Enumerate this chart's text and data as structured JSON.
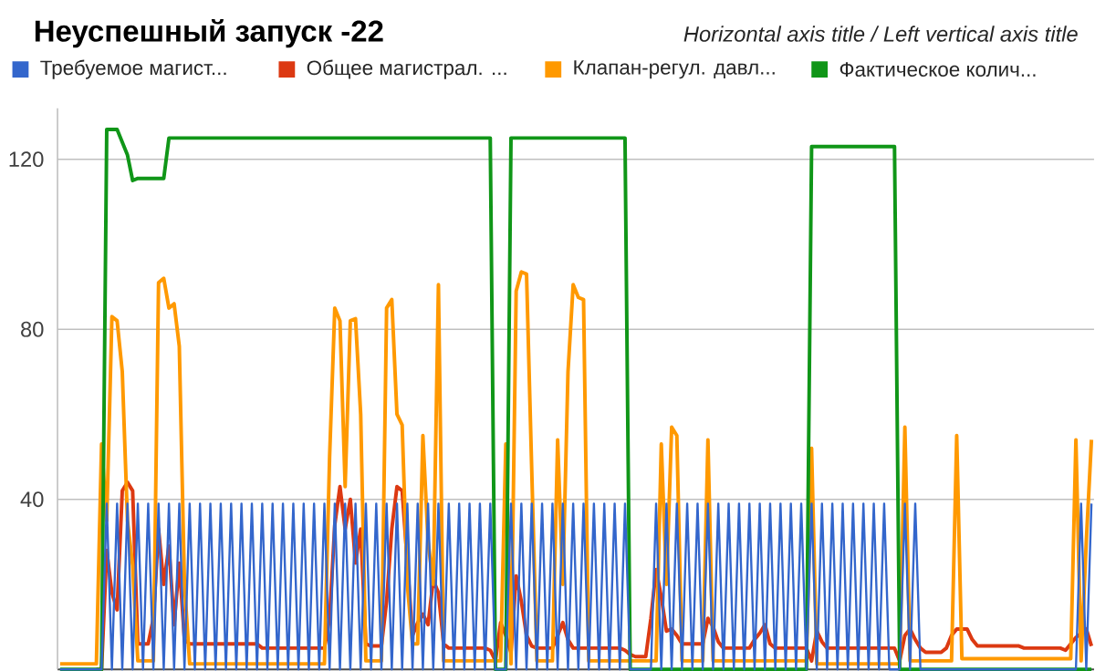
{
  "chart_data": {
    "type": "line",
    "title": "Неуспешный запуск -22",
    "subtitle": "Horizontal axis title / Left vertical axis title",
    "categories": [
      null,
      null,
      null,
      null,
      null,
      null,
      null,
      null,
      null,
      null,
      null,
      null,
      null,
      null,
      null,
      null,
      null,
      null,
      null,
      null,
      null,
      null,
      null,
      null,
      null,
      null,
      null,
      null,
      null,
      null,
      null,
      null,
      null,
      null,
      null,
      null,
      null,
      null,
      null,
      null,
      null,
      null,
      null,
      null,
      null,
      null,
      null,
      null,
      null,
      null,
      null,
      null,
      null,
      null,
      null,
      null,
      null,
      null,
      null,
      null,
      null,
      null,
      null,
      null,
      null,
      null,
      null,
      null,
      null,
      null,
      null,
      null,
      null,
      null,
      null,
      null,
      null,
      null,
      null,
      null,
      null,
      null,
      null,
      null,
      null,
      null,
      null,
      null,
      null,
      null,
      null,
      null,
      null,
      null,
      null,
      null,
      null,
      null,
      null,
      null,
      null,
      null,
      null,
      null,
      null,
      null,
      null,
      null,
      null,
      null,
      null,
      null,
      null,
      null,
      null,
      null,
      null,
      null,
      null,
      null,
      null,
      null,
      null,
      null,
      null,
      null,
      null,
      null,
      null,
      null,
      null,
      null,
      null,
      null,
      null,
      null,
      null,
      null,
      null,
      null,
      null,
      null,
      null,
      null,
      null,
      null,
      null,
      null,
      null,
      null,
      null,
      null,
      null,
      null,
      null,
      null,
      null,
      null,
      null,
      null,
      null,
      null,
      null,
      null,
      null,
      null,
      null,
      null,
      null,
      null,
      null,
      null,
      null,
      null,
      null,
      null,
      null,
      null,
      null,
      null,
      null,
      null,
      null,
      null,
      null,
      null,
      null,
      null,
      null,
      null,
      null,
      null,
      null,
      null,
      null,
      null,
      null,
      null,
      null,
      null
    ],
    "ylim": [
      0,
      132
    ],
    "yticks": [
      40,
      80,
      120
    ],
    "tick_labels": "y",
    "grid": "y",
    "legend": "top",
    "series": [
      {
        "name": "Требуемое магист...",
        "color": "#3366cc",
        "values": [
          0,
          0,
          0,
          0,
          0,
          0,
          0,
          0,
          0,
          39,
          0,
          39,
          0,
          39,
          0,
          39,
          0,
          39,
          0,
          39,
          0,
          39,
          0,
          39,
          0,
          39,
          0,
          39,
          0,
          39,
          0,
          39,
          0,
          39,
          0,
          39,
          0,
          39,
          0,
          39,
          0,
          39,
          0,
          39,
          0,
          39,
          0,
          39,
          0,
          39,
          0,
          39,
          0,
          39,
          0,
          39,
          0,
          39,
          0,
          39,
          0,
          39,
          0,
          39,
          0,
          39,
          0,
          39,
          0,
          39,
          0,
          39,
          0,
          39,
          0,
          39,
          0,
          39,
          0,
          39,
          0,
          39,
          0,
          39,
          0,
          0,
          0,
          39,
          0,
          39,
          0,
          39,
          0,
          39,
          0,
          39,
          0,
          39,
          0,
          39,
          0,
          39,
          0,
          39,
          0,
          39,
          0,
          39,
          0,
          39,
          0,
          0,
          0,
          0,
          0,
          39,
          0,
          39,
          0,
          39,
          0,
          39,
          0,
          39,
          0,
          39,
          0,
          39,
          0,
          39,
          0,
          39,
          0,
          39,
          0,
          39,
          0,
          39,
          0,
          39,
          0,
          39,
          0,
          39,
          0,
          39,
          0,
          39,
          0,
          39,
          0,
          39,
          0,
          39,
          0,
          39,
          0,
          39,
          0,
          39,
          0,
          0,
          0,
          39,
          0,
          39,
          0,
          0,
          0,
          0,
          0,
          0,
          0,
          0,
          0,
          0,
          0,
          0,
          0,
          0,
          0,
          0,
          0,
          0,
          0,
          0,
          0,
          0,
          0,
          0,
          0,
          0,
          0,
          0,
          0,
          0,
          0,
          39,
          0,
          39
        ]
      },
      {
        "name": "Общее магистрал. ...",
        "color": "#dc3912",
        "values": [
          null,
          null,
          null,
          null,
          null,
          null,
          null,
          0,
          0,
          28,
          18,
          14,
          42,
          44,
          42,
          6,
          6,
          6,
          12,
          33,
          20,
          29,
          10.5,
          25,
          7,
          6,
          6,
          6,
          6,
          6,
          6,
          6,
          6,
          6,
          6,
          6,
          6,
          6,
          6,
          5,
          5,
          5,
          5,
          5,
          5,
          5,
          5,
          5,
          5,
          5,
          5,
          5,
          12,
          34,
          43,
          33,
          40,
          25,
          33,
          6,
          5.5,
          5.5,
          5.5,
          16,
          33,
          43,
          42,
          25,
          8,
          11,
          13,
          10.5,
          21,
          18,
          6,
          5,
          5,
          5,
          5,
          5,
          5,
          5,
          5,
          4.5,
          2,
          11,
          8,
          4,
          22,
          16,
          8,
          5.5,
          5,
          5,
          5,
          5,
          8,
          11,
          7,
          5,
          5,
          5,
          5,
          5,
          5,
          5,
          5,
          5,
          5,
          4.5,
          3.5,
          3,
          3,
          3,
          12,
          23.5,
          17,
          9,
          9.5,
          8,
          6,
          6,
          6,
          6,
          6,
          12,
          10,
          6.5,
          5,
          5,
          5,
          5,
          5,
          5,
          7,
          8.5,
          10.5,
          6,
          5,
          5,
          5,
          5,
          5,
          5,
          5,
          2,
          9,
          6.5,
          5,
          5,
          5,
          5,
          5,
          5,
          5,
          5,
          5,
          5,
          5,
          5,
          5,
          5,
          2,
          8,
          9.5,
          7,
          5,
          4,
          4,
          4,
          4,
          5,
          8,
          9.5,
          9.5,
          9.5,
          7,
          5.5,
          5.5,
          5.5,
          5.5,
          5.5,
          5.5,
          5.5,
          5.5,
          5.5,
          5,
          5,
          5,
          5,
          5,
          5,
          5,
          5,
          4.5,
          6,
          7.5,
          8.5,
          9.5,
          5.5
        ]
      },
      {
        "name": "Клапан-регул. давл...",
        "color": "#ff9900",
        "values": [
          1.3,
          1.3,
          1.3,
          1.3,
          1.3,
          1.3,
          1.3,
          1.3,
          53,
          35,
          83,
          82,
          70,
          35,
          24.5,
          2,
          2,
          2,
          2,
          91,
          92,
          85,
          86,
          76,
          20,
          1.3,
          1.3,
          1.3,
          1.3,
          1.3,
          1.3,
          1.3,
          1.3,
          1.3,
          1.3,
          1.3,
          1.3,
          1.3,
          1.3,
          1.3,
          1.3,
          1.3,
          1.3,
          1.3,
          1.3,
          1.3,
          1.3,
          1.3,
          1.3,
          1.3,
          1.3,
          1.3,
          50,
          85,
          82,
          43,
          82,
          82.5,
          60,
          2,
          2,
          2,
          2,
          85,
          87,
          60,
          57.5,
          20,
          6,
          6,
          55,
          30,
          20,
          90.5,
          2,
          2,
          2,
          2,
          2,
          2,
          2,
          2,
          2,
          2,
          2,
          2,
          53,
          1.3,
          89,
          93.5,
          93,
          47,
          2,
          2,
          2,
          2,
          54,
          20,
          70,
          90.5,
          87.5,
          87,
          2,
          2,
          2,
          2,
          2,
          2,
          2,
          2,
          2,
          2,
          2,
          2,
          2,
          2,
          53,
          20,
          57,
          55,
          2,
          2,
          2,
          2,
          2,
          54,
          2,
          2,
          2,
          2,
          2,
          2,
          2,
          2,
          2,
          2,
          2,
          2,
          2,
          2,
          2,
          2,
          2,
          2,
          2,
          52,
          1.3,
          1.3,
          1.3,
          1.3,
          1.3,
          1.3,
          1.3,
          1.3,
          1.3,
          1.3,
          1.3,
          1.3,
          1.3,
          1.3,
          1.3,
          1.3,
          1.3,
          57,
          2,
          2,
          2,
          2,
          2,
          2,
          2,
          2,
          2,
          55,
          2.5,
          2.5,
          2.5,
          2.5,
          2.5,
          2.5,
          2.5,
          2.5,
          2.5,
          2.5,
          2.5,
          2.5,
          2.5,
          2.5,
          2.5,
          2.5,
          2.5,
          2.5,
          2.5,
          2.5,
          2.5,
          2.5,
          54,
          2,
          30,
          54
        ]
      },
      {
        "name": "Фактическое колич...",
        "color": "#109618",
        "values": [
          0,
          0,
          0,
          0,
          0,
          0,
          0,
          0,
          0,
          127,
          127,
          127,
          124,
          121,
          115,
          115.5,
          115.5,
          115.5,
          115.5,
          115.5,
          115.5,
          125,
          125,
          125,
          125,
          125,
          125,
          125,
          125,
          125,
          125,
          125,
          125,
          125,
          125,
          125,
          125,
          125,
          125,
          125,
          125,
          125,
          125,
          125,
          125,
          125,
          125,
          125,
          125,
          125,
          125,
          125,
          125,
          125,
          125,
          125,
          125,
          125,
          125,
          125,
          125,
          125,
          125,
          125,
          125,
          125,
          125,
          125,
          125,
          125,
          125,
          125,
          125,
          125,
          125,
          125,
          125,
          125,
          125,
          125,
          125,
          125,
          125,
          125,
          0,
          0,
          0,
          125,
          125,
          125,
          125,
          125,
          125,
          125,
          125,
          125,
          125,
          125,
          125,
          125,
          125,
          125,
          125,
          125,
          125,
          125,
          125,
          125,
          125,
          125,
          0,
          0,
          0,
          0,
          0,
          0,
          0,
          0,
          0,
          0,
          0,
          0,
          0,
          0,
          0,
          0,
          0,
          0,
          0,
          0,
          0,
          0,
          0,
          0,
          0,
          0,
          0,
          0,
          0,
          0,
          0,
          0,
          0,
          0,
          0,
          123,
          123,
          123,
          123,
          123,
          123,
          123,
          123,
          123,
          123,
          123,
          123,
          123,
          123,
          123,
          123,
          123,
          0,
          0,
          0,
          0,
          0,
          0,
          0,
          0,
          0,
          0,
          0,
          0,
          0,
          0,
          0,
          0,
          0,
          0,
          0,
          0,
          0,
          0,
          0,
          0,
          0,
          0,
          0,
          0,
          0,
          0,
          0,
          0,
          0,
          0,
          0,
          0,
          0,
          0
        ]
      }
    ]
  }
}
